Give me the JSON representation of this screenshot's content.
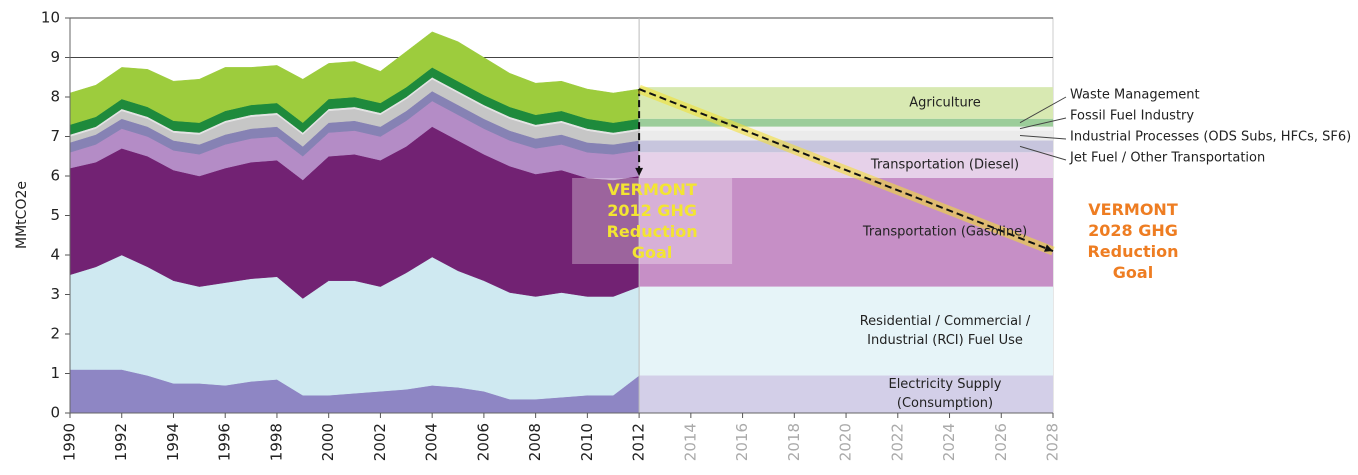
{
  "chart_data": {
    "type": "stacked-area",
    "y_label": "MMtCO2e",
    "x": [
      1990,
      1991,
      1992,
      1993,
      1994,
      1995,
      1996,
      1997,
      1998,
      1999,
      2000,
      2001,
      2002,
      2003,
      2004,
      2005,
      2006,
      2007,
      2008,
      2009,
      2010,
      2011,
      2012
    ],
    "xlim": [
      1990,
      2028
    ],
    "xticks": [
      1990,
      1992,
      1994,
      1996,
      1998,
      2000,
      2002,
      2004,
      2006,
      2008,
      2010,
      2012,
      2014,
      2016,
      2018,
      2020,
      2022,
      2024,
      2026,
      2028
    ],
    "ylim": [
      0,
      10
    ],
    "yticks": [
      0,
      1,
      2,
      3,
      4,
      5,
      6,
      7,
      8,
      9,
      10
    ],
    "grid": true,
    "series": [
      {
        "name": "Electricity Supply (Consumption)",
        "color": "#8e86c4",
        "projection_color": "#d3cfe8",
        "projection": 0.95,
        "values": [
          1.1,
          1.1,
          1.1,
          0.95,
          0.75,
          0.75,
          0.7,
          0.8,
          0.85,
          0.45,
          0.45,
          0.5,
          0.55,
          0.6,
          0.7,
          0.65,
          0.55,
          0.35,
          0.35,
          0.4,
          0.45,
          0.45,
          0.95
        ]
      },
      {
        "name": "Residential / Commercial / Industrial (RCI) Fuel Use",
        "color": "#cfe9f1",
        "projection_color": "#e6f4f8",
        "projection": 2.25,
        "values": [
          2.4,
          2.6,
          2.9,
          2.75,
          2.6,
          2.45,
          2.6,
          2.6,
          2.6,
          2.45,
          2.9,
          2.85,
          2.65,
          2.95,
          3.25,
          2.95,
          2.8,
          2.7,
          2.6,
          2.65,
          2.5,
          2.5,
          2.25
        ]
      },
      {
        "name": "Transportation (Gasoline)",
        "color": "#722273",
        "projection_color": "#c68fc6",
        "projection": 2.75,
        "values": [
          2.7,
          2.65,
          2.7,
          2.8,
          2.8,
          2.8,
          2.9,
          2.95,
          2.95,
          3.0,
          3.15,
          3.2,
          3.2,
          3.2,
          3.3,
          3.3,
          3.2,
          3.2,
          3.1,
          3.1,
          3.0,
          2.95,
          2.8
        ]
      },
      {
        "name": "Transportation (Diesel)",
        "color": "#b48cc6",
        "projection_color": "#e6d1e9",
        "projection": 0.65,
        "values": [
          0.4,
          0.45,
          0.5,
          0.5,
          0.5,
          0.55,
          0.6,
          0.6,
          0.6,
          0.6,
          0.6,
          0.6,
          0.6,
          0.65,
          0.65,
          0.65,
          0.65,
          0.65,
          0.65,
          0.65,
          0.65,
          0.65,
          0.65
        ]
      },
      {
        "name": "Jet Fuel / Other Transportation",
        "color": "#8682b4",
        "projection_color": "#c7c5dd",
        "projection": 0.3,
        "values": [
          0.25,
          0.25,
          0.25,
          0.25,
          0.25,
          0.25,
          0.25,
          0.25,
          0.25,
          0.25,
          0.25,
          0.25,
          0.25,
          0.25,
          0.25,
          0.25,
          0.25,
          0.25,
          0.25,
          0.25,
          0.25,
          0.25,
          0.25
        ]
      },
      {
        "name": "Industrial Processes (ODS Subs, HFCs, SF6)",
        "color": "#c6c6c6",
        "projection_color": "#ebebeb",
        "projection": 0.25,
        "values": [
          0.15,
          0.15,
          0.2,
          0.2,
          0.2,
          0.25,
          0.3,
          0.3,
          0.3,
          0.3,
          0.3,
          0.3,
          0.3,
          0.3,
          0.3,
          0.3,
          0.3,
          0.3,
          0.3,
          0.3,
          0.3,
          0.25,
          0.25
        ]
      },
      {
        "name": "Fossil Fuel Industry",
        "color": "#e4e4e4",
        "projection_color": "#f3f3f3",
        "projection": 0.1,
        "values": [
          0.05,
          0.05,
          0.05,
          0.05,
          0.05,
          0.05,
          0.05,
          0.05,
          0.05,
          0.05,
          0.05,
          0.05,
          0.05,
          0.05,
          0.05,
          0.05,
          0.05,
          0.05,
          0.05,
          0.05,
          0.05,
          0.05,
          0.05
        ]
      },
      {
        "name": "Waste Management",
        "color": "#1e8a3c",
        "projection_color": "#9ccd9a",
        "projection": 0.2,
        "values": [
          0.25,
          0.25,
          0.25,
          0.25,
          0.25,
          0.25,
          0.25,
          0.25,
          0.25,
          0.25,
          0.25,
          0.25,
          0.25,
          0.25,
          0.25,
          0.25,
          0.25,
          0.25,
          0.25,
          0.25,
          0.25,
          0.25,
          0.25
        ]
      },
      {
        "name": "Agriculture",
        "color": "#9dcc3d",
        "projection_color": "#d8e9b2",
        "projection": 0.8,
        "values": [
          0.8,
          0.8,
          0.8,
          0.95,
          1.0,
          1.1,
          1.1,
          0.95,
          0.95,
          1.1,
          0.9,
          0.9,
          0.8,
          0.9,
          0.9,
          1.0,
          0.95,
          0.85,
          0.8,
          0.75,
          0.75,
          0.75,
          0.75
        ]
      }
    ],
    "annotations": [
      {
        "text": "VERMONT 2012 GHG Reduction Goal",
        "x": 2012,
        "value": 6.0,
        "color": "#f3e532"
      },
      {
        "text": "VERMONT 2028 GHG Reduction Goal",
        "x": 2028,
        "value": 4.1,
        "color": "#ee7d22"
      }
    ]
  }
}
